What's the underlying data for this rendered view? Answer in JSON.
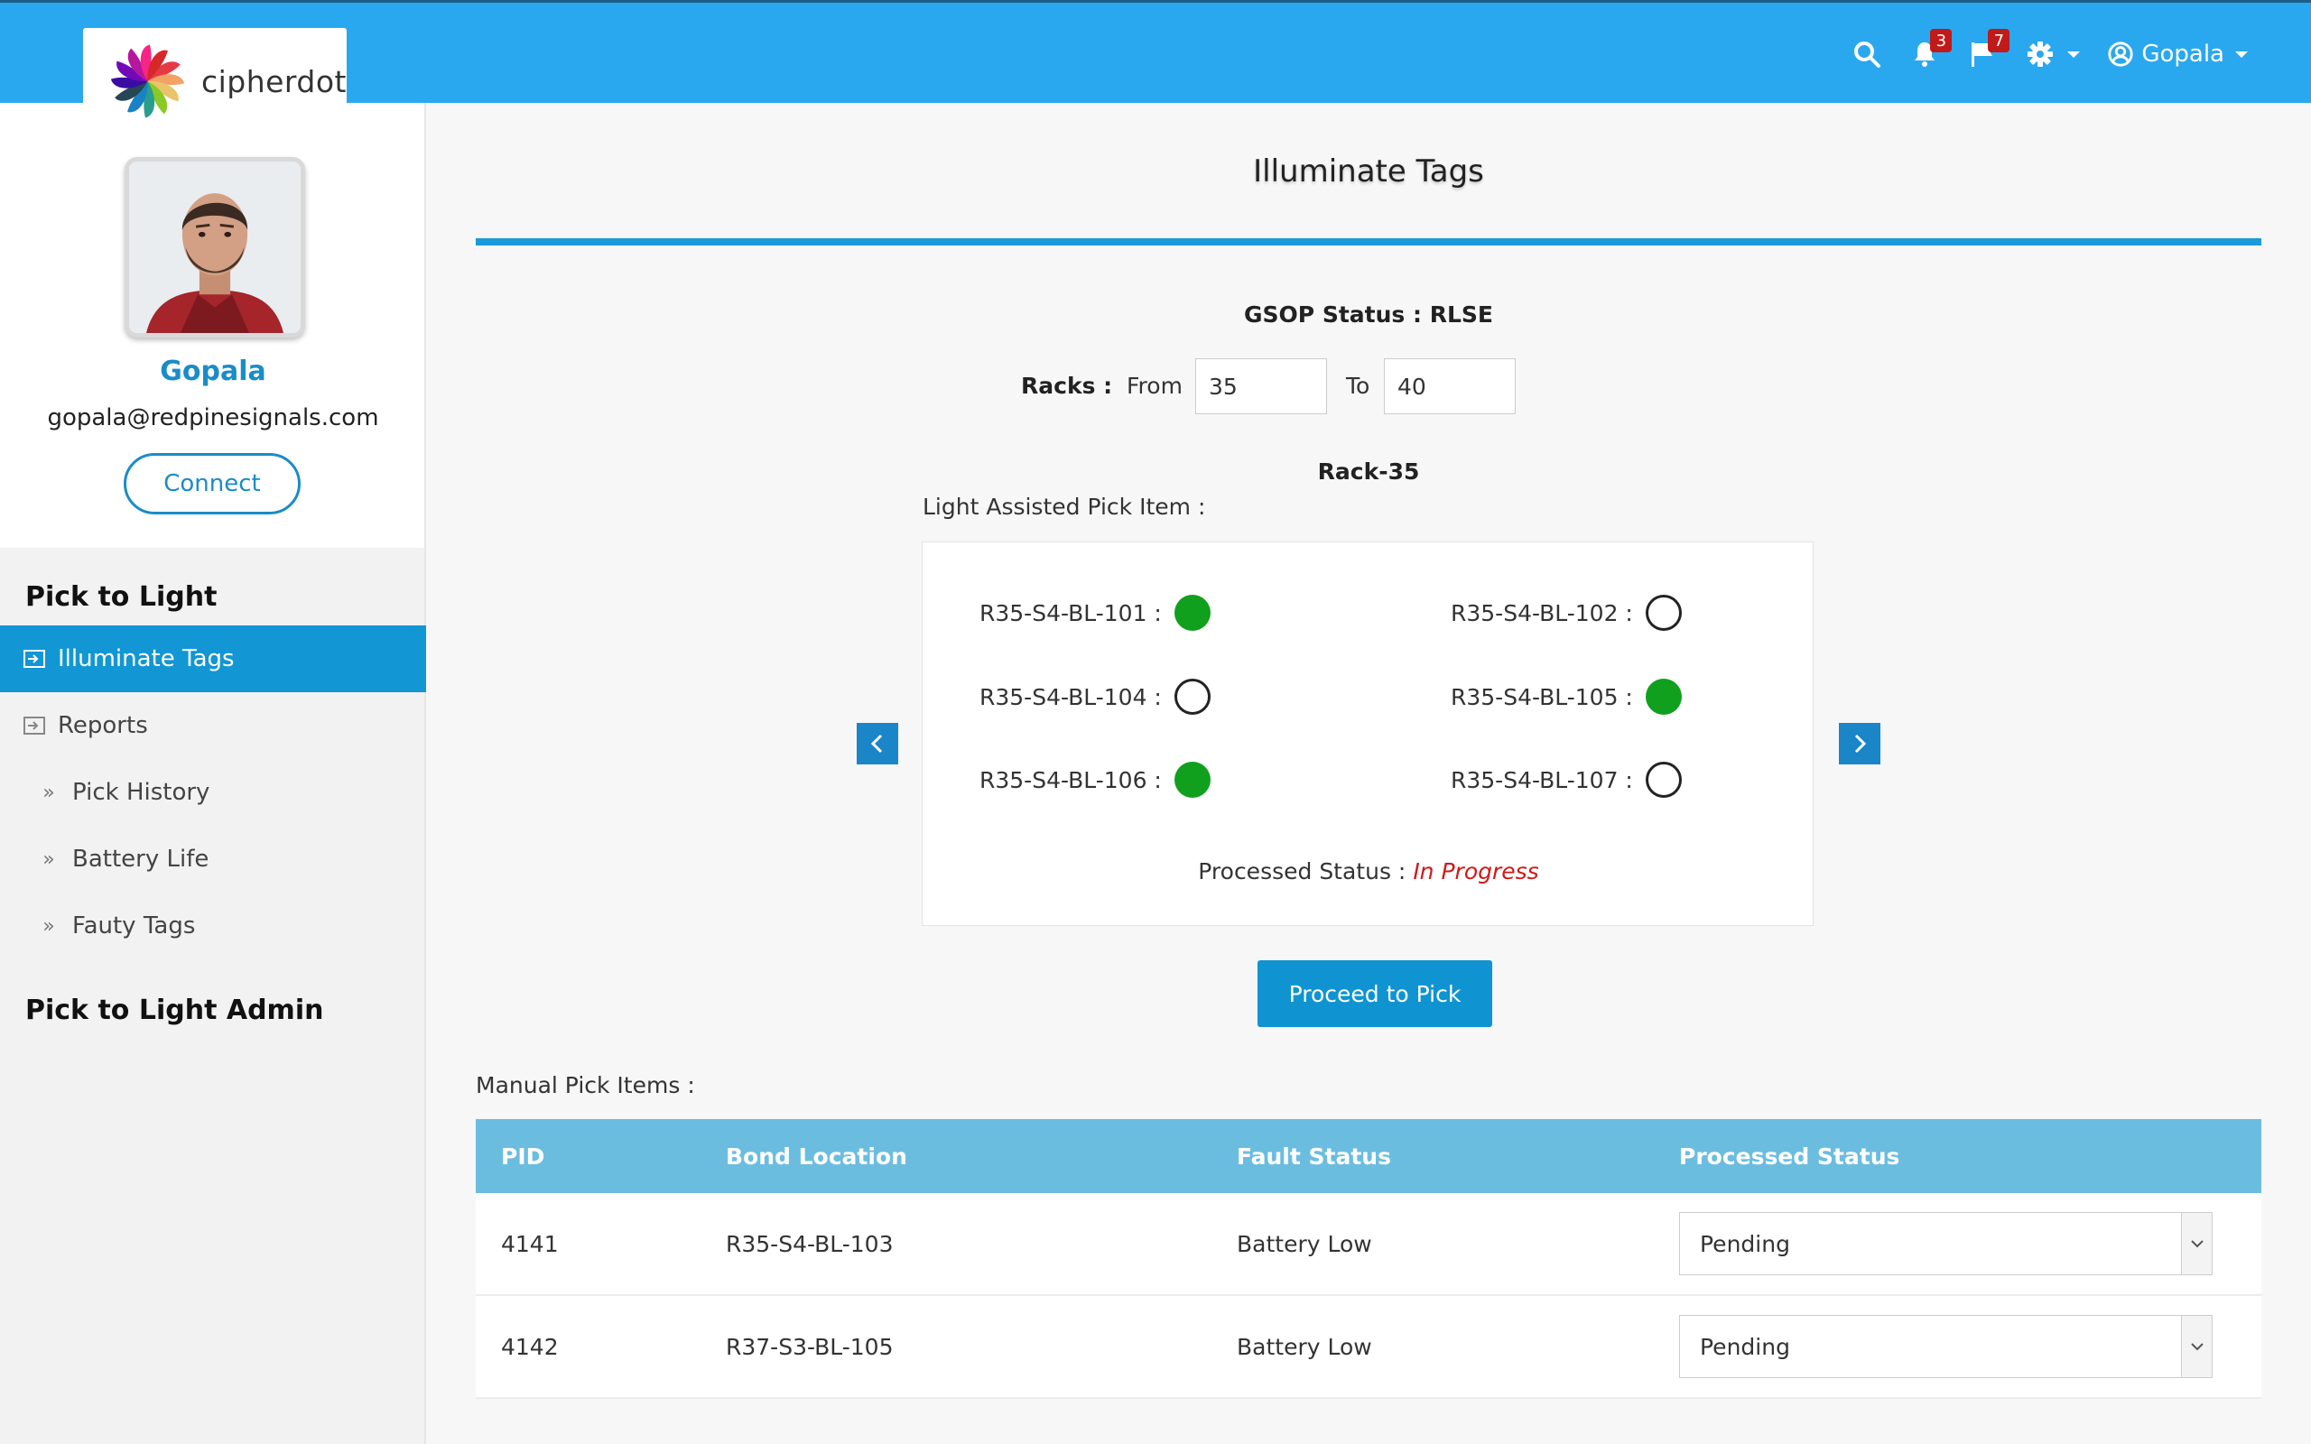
{
  "brand": {
    "name": "cipherdot"
  },
  "topbar": {
    "notifications_count": "3",
    "flags_count": "7",
    "user_name": "Gopala"
  },
  "profile": {
    "name": "Gopala",
    "email": "gopala@redpinesignals.com",
    "connect_label": "Connect"
  },
  "sidebar": {
    "section1_title": "Pick to Light",
    "items": [
      {
        "label": "Illuminate Tags",
        "icon": "enter-icon",
        "active": true
      },
      {
        "label": "Reports",
        "icon": "enter-icon",
        "active": false
      },
      {
        "label": "Pick History",
        "icon": "double-chevron-icon",
        "sub": true
      },
      {
        "label": "Battery Life",
        "icon": "double-chevron-icon",
        "sub": true
      },
      {
        "label": "Fauty Tags",
        "icon": "double-chevron-icon",
        "sub": true
      }
    ],
    "section2_title": "Pick to Light Admin"
  },
  "main": {
    "title": "Illuminate Tags",
    "gsop_status": "GSOP Status : RLSE",
    "racks_label": "Racks :",
    "from_label": "From",
    "from_value": "35",
    "to_label": "To",
    "to_value": "40",
    "rack_name": "Rack-35",
    "light_assisted_label": "Light Assisted Pick Item :",
    "tags": [
      {
        "label": "R35-S4-BL-101 :",
        "lit": true
      },
      {
        "label": "R35-S4-BL-102 :",
        "lit": false
      },
      {
        "label": "R35-S4-BL-104 :",
        "lit": false
      },
      {
        "label": "R35-S4-BL-105 :",
        "lit": true
      },
      {
        "label": "R35-S4-BL-106 :",
        "lit": true
      },
      {
        "label": "R35-S4-BL-107 :",
        "lit": false
      }
    ],
    "processed_status_label": "Processed Status :",
    "processed_status_value": "In Progress",
    "proceed_label": "Proceed to Pick",
    "manual_label": "Manual Pick Items :",
    "table": {
      "headers": [
        "PID",
        "Bond Location",
        "Fault Status",
        "Processed Status"
      ],
      "rows": [
        {
          "pid": "4141",
          "location": "R35-S4-BL-103",
          "fault": "Battery Low",
          "status": "Pending"
        },
        {
          "pid": "4142",
          "location": "R37-S3-BL-105",
          "fault": "Battery Low",
          "status": "Pending"
        }
      ]
    }
  },
  "colors": {
    "topbar": "#2aa8ef",
    "accent": "#1296d4",
    "lit_dot": "#10a01e",
    "in_progress": "#d01818",
    "table_header": "#6bbde0"
  }
}
